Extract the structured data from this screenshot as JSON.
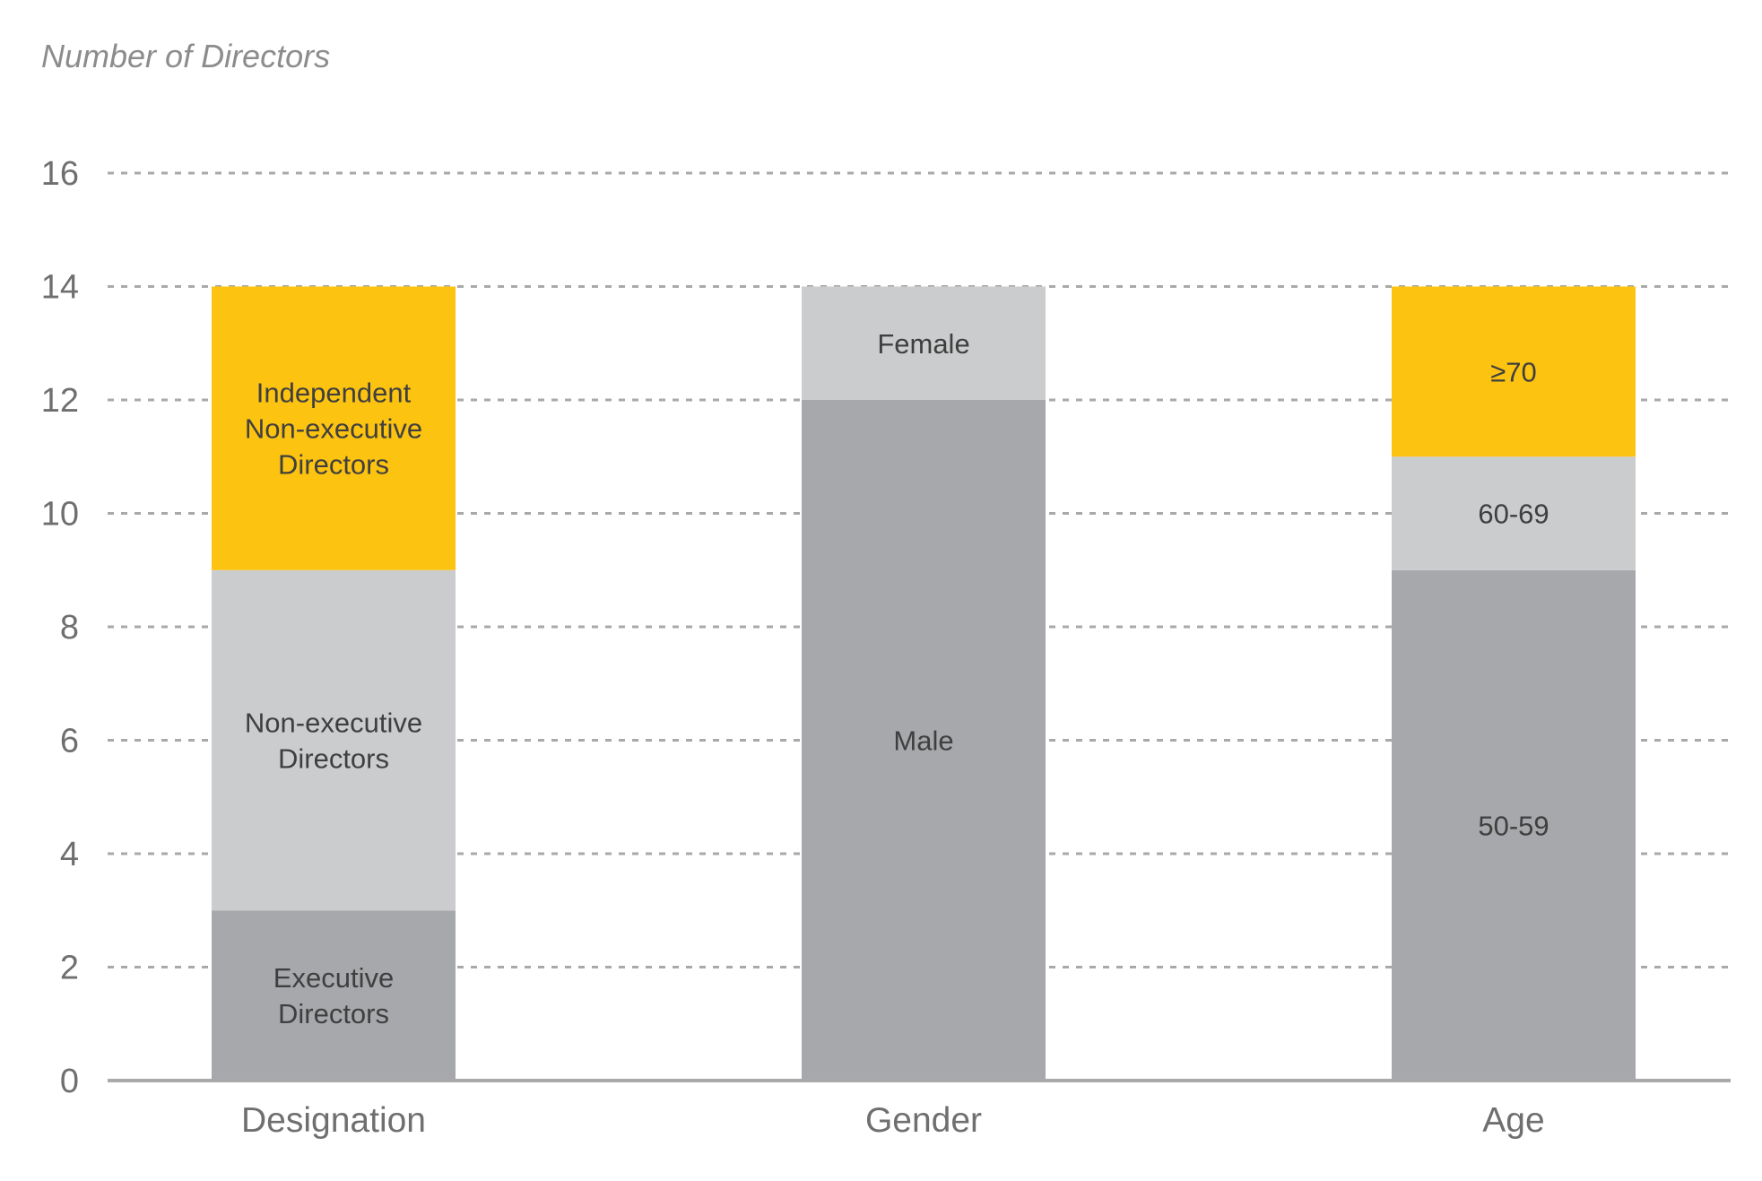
{
  "chart_data": {
    "type": "bar",
    "stacked": true,
    "title": "",
    "ylabel": "Number of Directors",
    "xlabel": "",
    "ylim": [
      0,
      16
    ],
    "yticks": [
      0,
      2,
      4,
      6,
      8,
      10,
      12,
      14,
      16
    ],
    "grid": true,
    "categories": [
      "Designation",
      "Gender",
      "Age"
    ],
    "bars": [
      {
        "category": "Designation",
        "segments": [
          {
            "label": [
              "Executive",
              "Directors"
            ],
            "value": 3,
            "color": "#a7a8ab"
          },
          {
            "label": [
              "Non-executive",
              "Directors"
            ],
            "value": 6,
            "color": "#cbcccd"
          },
          {
            "label": [
              "Independent",
              "Non-executive",
              "Directors"
            ],
            "value": 5,
            "color": "#fdc311"
          }
        ]
      },
      {
        "category": "Gender",
        "segments": [
          {
            "label": [
              "Male"
            ],
            "value": 12,
            "color": "#a7a8ab"
          },
          {
            "label": [
              "Female"
            ],
            "value": 2,
            "color": "#cbcccd"
          }
        ]
      },
      {
        "category": "Age",
        "segments": [
          {
            "label": [
              "50-59"
            ],
            "value": 9,
            "color": "#a7a8ab"
          },
          {
            "label": [
              "60-69"
            ],
            "value": 2,
            "color": "#cbcccd"
          },
          {
            "label": [
              "≥70"
            ],
            "value": 3,
            "color": "#fdc311"
          }
        ]
      }
    ]
  }
}
